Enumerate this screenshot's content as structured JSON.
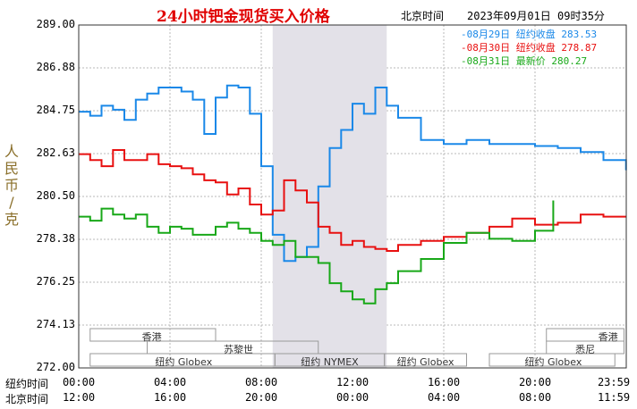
{
  "header": {
    "title": "24小时钯金现货买入价格",
    "timezone_label": "北京时间",
    "timestamp": "2023年09月01日 09时35分"
  },
  "y_axis_label": "人民币/克",
  "x_axes": [
    {
      "name": "纽约时间",
      "ticks": [
        "00:00",
        "04:00",
        "08:00",
        "12:00",
        "16:00",
        "20:00",
        "23:59"
      ]
    },
    {
      "name": "北京时间",
      "ticks": [
        "12:00",
        "16:00",
        "20:00",
        "00:00",
        "04:00",
        "08:00",
        "11:59"
      ]
    }
  ],
  "sessions": [
    "香港",
    "苏黎世",
    "纽约 Globex",
    "纽约 NYMEX",
    "纽约 Globex",
    "纽约 Globex",
    "悉尼",
    "香港"
  ],
  "legend": [
    {
      "date": "08月29日",
      "status": "纽约收盘",
      "value": "283.53",
      "color": "#1a88e8"
    },
    {
      "date": "08月30日",
      "status": "纽约收盘",
      "value": "278.87",
      "color": "#e81010"
    },
    {
      "date": "08月31日",
      "status": "最新价",
      "value": "280.27",
      "color": "#18a818"
    }
  ],
  "chart_data": {
    "type": "line",
    "title": "24小时钯金现货买入价格",
    "ylabel": "人民币/克",
    "ylim": [
      272.0,
      289.0
    ],
    "yticks": [
      "289.00",
      "286.88",
      "284.75",
      "282.63",
      "280.50",
      "278.38",
      "276.25",
      "274.13",
      "272.00"
    ],
    "xlim": [
      0,
      24
    ],
    "highlight_range": [
      8.5,
      13.5
    ],
    "series": [
      {
        "name": "08月29日",
        "color": "#1a88e8",
        "x": [
          0,
          0.5,
          1,
          1.5,
          2,
          2.5,
          3,
          3.5,
          4,
          4.5,
          5,
          5.5,
          6,
          6.5,
          7,
          7.5,
          8,
          8.5,
          9,
          9.5,
          10,
          10.5,
          11,
          11.5,
          12,
          12.5,
          13,
          13.5,
          14,
          15,
          16,
          17,
          18,
          19,
          20,
          21,
          22,
          23,
          23.99
        ],
        "y": [
          284.7,
          284.5,
          285.0,
          284.8,
          284.3,
          285.3,
          285.6,
          285.9,
          285.9,
          285.7,
          285.3,
          283.6,
          285.4,
          286.0,
          285.9,
          284.6,
          282.0,
          278.6,
          277.3,
          277.5,
          278.0,
          281.0,
          282.9,
          283.8,
          285.1,
          284.6,
          285.9,
          285.0,
          284.4,
          283.3,
          283.1,
          283.3,
          283.1,
          283.1,
          283.0,
          282.9,
          282.7,
          282.3,
          281.8
        ]
      },
      {
        "name": "08月30日",
        "color": "#e81010",
        "x": [
          0,
          0.5,
          1,
          1.5,
          2,
          2.5,
          3,
          3.5,
          4,
          4.5,
          5,
          5.5,
          6,
          6.5,
          7,
          7.5,
          8,
          8.5,
          9,
          9.5,
          10,
          10.5,
          11,
          11.5,
          12,
          12.5,
          13,
          13.5,
          14,
          15,
          16,
          17,
          18,
          19,
          20,
          21,
          22,
          23,
          23.99
        ],
        "y": [
          282.6,
          282.3,
          282.0,
          282.8,
          282.3,
          282.3,
          282.6,
          282.1,
          282.0,
          281.9,
          281.6,
          281.3,
          281.2,
          280.6,
          280.9,
          280.1,
          279.6,
          279.8,
          281.3,
          280.8,
          280.2,
          279.0,
          278.7,
          278.1,
          278.3,
          278.0,
          277.9,
          277.8,
          278.1,
          278.3,
          278.5,
          278.7,
          279.0,
          279.4,
          279.1,
          279.2,
          279.6,
          279.5,
          279.5
        ]
      },
      {
        "name": "08月31日",
        "color": "#18a818",
        "x": [
          0,
          0.5,
          1,
          1.5,
          2,
          2.5,
          3,
          3.5,
          4,
          4.5,
          5,
          5.5,
          6,
          6.5,
          7,
          7.5,
          8,
          8.5,
          9,
          9.5,
          10,
          10.5,
          11,
          11.5,
          12,
          12.5,
          13,
          13.5,
          14,
          15,
          16,
          17,
          18,
          19,
          20,
          20.8
        ],
        "y": [
          279.5,
          279.3,
          279.9,
          279.6,
          279.4,
          279.6,
          279.0,
          278.7,
          279.0,
          278.9,
          278.6,
          278.6,
          279.0,
          279.2,
          278.9,
          278.7,
          278.3,
          278.1,
          278.3,
          277.5,
          277.5,
          277.2,
          276.2,
          275.8,
          275.4,
          275.2,
          275.9,
          276.2,
          276.8,
          277.4,
          278.2,
          278.7,
          278.4,
          278.3,
          278.8,
          280.3
        ]
      }
    ]
  }
}
